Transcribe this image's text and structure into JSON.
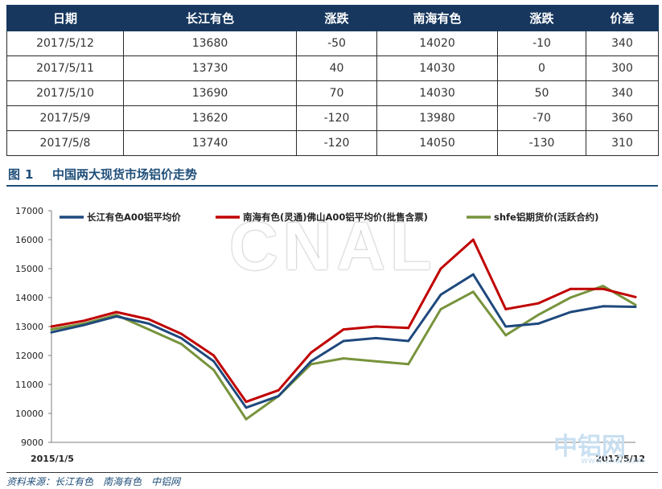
{
  "table": {
    "headers": [
      "日期",
      "长江有色",
      "涨跌",
      "南海有色",
      "涨跌",
      "价差"
    ],
    "rows": [
      [
        "2017/5/12",
        "13680",
        "-50",
        "14020",
        "-10",
        "340"
      ],
      [
        "2017/5/11",
        "13730",
        "40",
        "14030",
        "0",
        "300"
      ],
      [
        "2017/5/10",
        "13690",
        "70",
        "14030",
        "50",
        "340"
      ],
      [
        "2017/5/9",
        "13620",
        "-120",
        "13980",
        "-70",
        "360"
      ],
      [
        "2017/5/8",
        "13740",
        "-120",
        "14050",
        "-130",
        "310"
      ]
    ]
  },
  "figure": {
    "label": "图",
    "number": "1",
    "title": "中国两大现货市场铝价走势"
  },
  "watermark": {
    "main": "CNAL",
    "cn": "中铝网",
    "url": "www.cnal.com"
  },
  "source": "资料来源：长江有色　南海有色　中铝网",
  "chart_data": {
    "type": "line",
    "title": "",
    "xlabel": "",
    "ylabel": "",
    "ylim": [
      9000,
      17000
    ],
    "yticks": [
      "17000",
      "16000",
      "15000",
      "14000",
      "13000",
      "12000",
      "11000",
      "10000",
      "9000"
    ],
    "x_start_label": "2015/1/5",
    "x_end_label": "2017/5/12",
    "x": [
      "2015-01",
      "2015-03",
      "2015-05",
      "2015-07",
      "2015-09",
      "2015-11",
      "2015-12",
      "2016-02",
      "2016-04",
      "2016-06",
      "2016-08",
      "2016-10",
      "2016-11",
      "2016-12",
      "2017-01",
      "2017-02",
      "2017-03",
      "2017-04",
      "2017-05"
    ],
    "series": [
      {
        "name": "长江有色A00铝平均价",
        "color": "#1f497d",
        "values": [
          12800,
          13050,
          13350,
          13100,
          12600,
          11800,
          10200,
          10600,
          11800,
          12500,
          12600,
          12500,
          14100,
          14800,
          13000,
          13100,
          13500,
          13700,
          13680
        ]
      },
      {
        "name": "南海有色(灵通)佛山A00铝平均价(批售含票)",
        "color": "#c00000",
        "values": [
          13000,
          13200,
          13500,
          13250,
          12750,
          12000,
          10400,
          10800,
          12100,
          12900,
          13000,
          12950,
          15000,
          16000,
          13600,
          13800,
          14300,
          14300,
          14020
        ]
      },
      {
        "name": "shfe铝期货价(活跃合约)",
        "color": "#77933c",
        "values": [
          12900,
          13100,
          13400,
          12900,
          12400,
          11500,
          9800,
          10600,
          11700,
          11900,
          11800,
          11700,
          13600,
          14200,
          12700,
          13400,
          14000,
          14400,
          13750
        ]
      }
    ]
  }
}
